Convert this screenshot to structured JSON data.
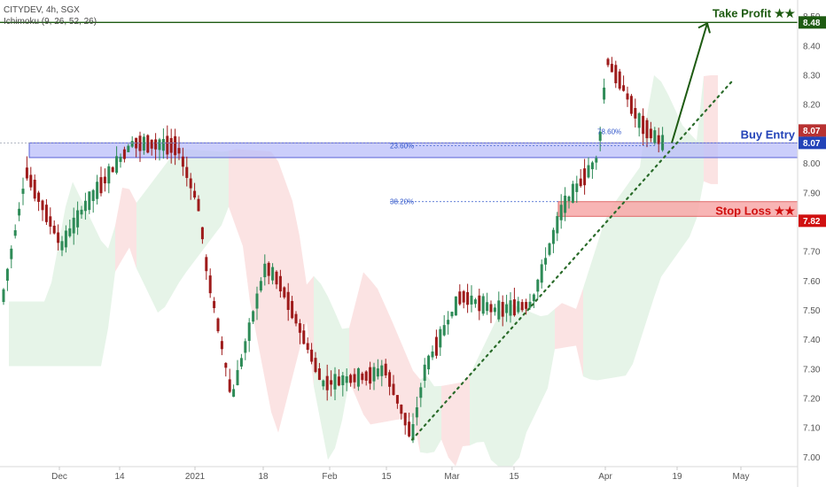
{
  "header": {
    "symbol_line": "CITYDEV, 4h, SGX",
    "indicator_line": "Ichimoku (9, 26, 52, 26)"
  },
  "chart_data": {
    "type": "candlestick",
    "symbol": "CITYDEV",
    "interval": "4h",
    "exchange": "SGX",
    "ylim": [
      6.97,
      8.52
    ],
    "y_ticks": [
      "8.50",
      "8.40",
      "8.30",
      "8.20",
      "8.10",
      "8.00",
      "7.90",
      "7.80",
      "7.70",
      "7.60",
      "7.50",
      "7.40",
      "7.30",
      "7.20",
      "7.10",
      "7.00"
    ],
    "x_ticks": [
      "Dec",
      "14",
      "2021",
      "18",
      "Feb",
      "15",
      "Mar",
      "15",
      "Apr",
      "19",
      "May"
    ],
    "price_path": [
      {
        "period": "late Nov",
        "price": 7.55
      },
      {
        "period": "early Dec",
        "price": 7.97
      },
      {
        "period": "Dec",
        "price": 7.72
      },
      {
        "period": "Dec 14",
        "price": 8.07
      },
      {
        "period": "late Dec",
        "price": 8.06
      },
      {
        "period": "2021",
        "price": 7.67
      },
      {
        "period": "early Jan",
        "price": 7.2
      },
      {
        "period": "Jan 18",
        "price": 7.65
      },
      {
        "period": "Feb",
        "price": 7.25
      },
      {
        "period": "Feb 15",
        "price": 7.3
      },
      {
        "period": "late Feb",
        "price": 7.07
      },
      {
        "period": "Mar",
        "price": 7.55
      },
      {
        "period": "Mar 15",
        "price": 7.5
      },
      {
        "period": "late Mar",
        "price": 8.05
      },
      {
        "period": "Apr",
        "price": 8.35
      },
      {
        "period": "mid Apr",
        "price": 8.07
      }
    ],
    "levels": [
      {
        "label": "Take Profit ★★",
        "value": 8.48,
        "tag": "8.48",
        "color": "#1e5b12"
      },
      {
        "label": "Buy Entry",
        "value": 8.07,
        "tag": "8.07",
        "color": "#2343b8"
      },
      {
        "label": "Stop Loss ★★",
        "value": 7.82,
        "tag": "7.82",
        "color": "#d01010"
      }
    ],
    "last_price_tag": {
      "value": 8.07,
      "tag": "8.07",
      "color": "#b83232"
    },
    "fib_labels": [
      "23.60%",
      "78.60%",
      "38.20%"
    ],
    "trendline_start": {
      "period": "late Feb",
      "price": 7.06
    },
    "trendline_end": {
      "period": "late Apr",
      "price": 8.28
    },
    "target_arrow_from": 8.07,
    "target_arrow_to": 8.48,
    "colors": {
      "up": "#2e8b57",
      "down": "#9e1b1b",
      "cloud_bull": "#e6f4e8",
      "cloud_bear": "#fbe3e3",
      "zone_blue": "#b9bdfa",
      "zone_red": "#f7a8a8"
    }
  }
}
